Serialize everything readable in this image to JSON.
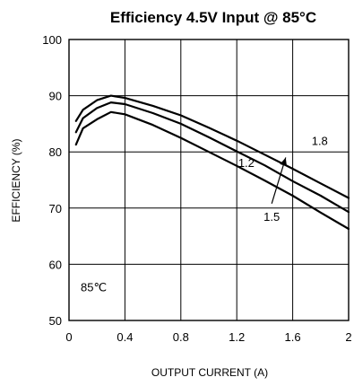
{
  "chart_data": {
    "type": "line",
    "title": "Efficiency 4.5V Input @ 85°C",
    "xlabel": "OUTPUT CURRENT (A)",
    "ylabel": "EFFICIENCY (%)",
    "xlim": [
      0,
      2
    ],
    "ylim": [
      50,
      100
    ],
    "x_ticks": [
      "0",
      "0.4",
      "0.8",
      "1.2",
      "1.6",
      "2"
    ],
    "y_ticks": [
      "50",
      "60",
      "70",
      "80",
      "90",
      "100"
    ],
    "grid": true,
    "annotation": "85℃",
    "series": [
      {
        "name": "1.8",
        "x": [
          0.05,
          0.1,
          0.2,
          0.3,
          0.4,
          0.6,
          0.8,
          1.0,
          1.2,
          1.4,
          1.6,
          1.8,
          2.0
        ],
        "y": [
          85.5,
          87.5,
          89.2,
          90.0,
          89.6,
          88.2,
          86.5,
          84.3,
          82.0,
          79.5,
          77.0,
          74.4,
          71.8
        ]
      },
      {
        "name": "1.5",
        "x": [
          0.05,
          0.1,
          0.2,
          0.3,
          0.4,
          0.6,
          0.8,
          1.0,
          1.2,
          1.4,
          1.6,
          1.8,
          2.0
        ],
        "y": [
          83.5,
          86.0,
          87.8,
          88.8,
          88.5,
          86.9,
          85.0,
          82.6,
          80.1,
          77.6,
          74.8,
          72.2,
          69.3
        ]
      },
      {
        "name": "1.2",
        "x": [
          0.05,
          0.1,
          0.2,
          0.3,
          0.4,
          0.6,
          0.8,
          1.0,
          1.2,
          1.4,
          1.6,
          1.8,
          2.0
        ],
        "y": [
          81.3,
          84.2,
          85.8,
          87.1,
          86.7,
          84.8,
          82.5,
          80.0,
          77.5,
          74.9,
          72.2,
          69.2,
          66.3
        ]
      }
    ]
  }
}
